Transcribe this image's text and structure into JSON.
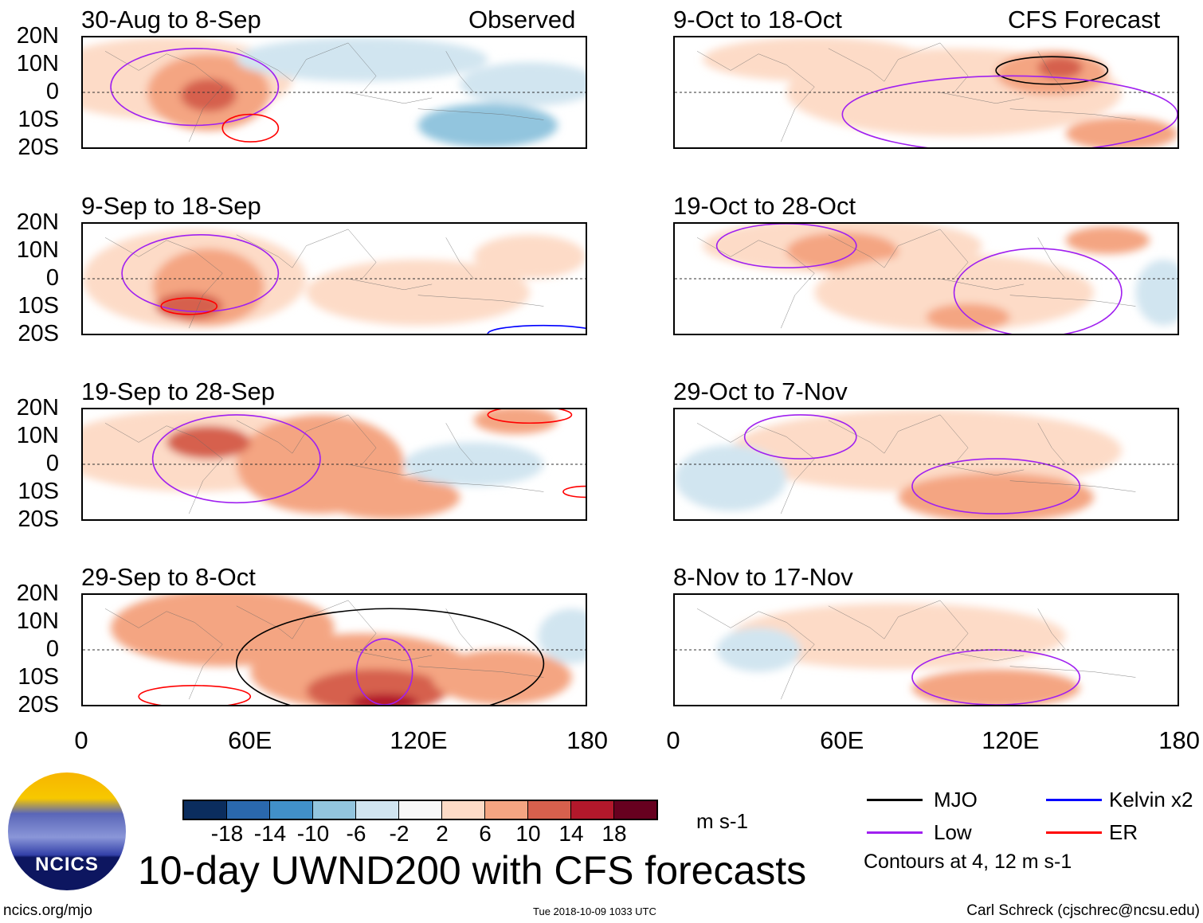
{
  "headers": {
    "left": "Observed",
    "right": "CFS Forecast"
  },
  "panels": [
    {
      "title": "30-Aug to 8-Sep",
      "column": "left"
    },
    {
      "title": "9-Sep to 18-Sep",
      "column": "left"
    },
    {
      "title": "19-Sep to 28-Sep",
      "column": "left"
    },
    {
      "title": "29-Sep to 8-Oct",
      "column": "left"
    },
    {
      "title": "9-Oct to 18-Oct",
      "column": "right"
    },
    {
      "title": "19-Oct to 28-Oct",
      "column": "right"
    },
    {
      "title": "29-Oct to 7-Nov",
      "column": "right"
    },
    {
      "title": "8-Nov to 17-Nov",
      "column": "right"
    }
  ],
  "lat_labels": [
    "20N",
    "10N",
    "0",
    "10S",
    "20S"
  ],
  "lon_labels": [
    "0",
    "60E",
    "120E",
    "180"
  ],
  "colorbar": {
    "colors": [
      "#0b2d5e",
      "#2a68ad",
      "#4190c9",
      "#92c5de",
      "#d1e5f0",
      "#f7f7f7",
      "#fddbc7",
      "#f4a582",
      "#d6604d",
      "#b2182b",
      "#67001f"
    ],
    "ticks": [
      "-18",
      "-14",
      "-10",
      "-6",
      "-2",
      "2",
      "6",
      "10",
      "14",
      "18"
    ],
    "units": "m s-1"
  },
  "legend": {
    "items": [
      {
        "label": "MJO",
        "color": "#000000"
      },
      {
        "label": "Kelvin x2",
        "color": "#0000ff"
      },
      {
        "label": "Low",
        "color": "#a020f0"
      },
      {
        "label": "ER",
        "color": "#ff0000"
      }
    ],
    "contours_note": "Contours at 4, 12 m s-1"
  },
  "logo_text": "NCICS",
  "title": "10-day UWND200 with CFS forecasts",
  "footer": {
    "url": "ncics.org/mjo",
    "timestamp": "Tue 2018-10-09 1033 UTC",
    "author": "Carl Schreck (cjschrec@ncsu.edu)"
  }
}
